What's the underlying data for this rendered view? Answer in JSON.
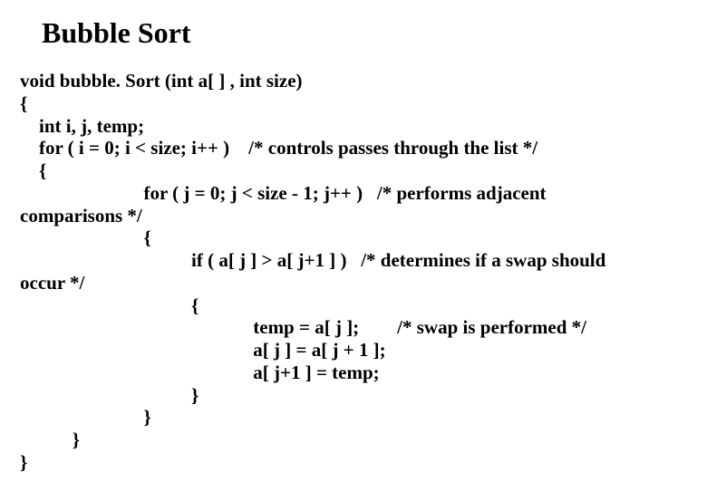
{
  "title": "Bubble Sort",
  "code_lines": [
    "void bubble. Sort (int a[ ] , int size)",
    "{",
    "    int i, j, temp;",
    "    for ( i = 0; i < size; i++ )    /* controls passes through the list */",
    "    {",
    "                          for ( j = 0; j < size - 1; j++ )   /* performs adjacent",
    "comparisons */",
    "                          {",
    "                                    if ( a[ j ] > a[ j+1 ] )   /* determines if a swap should",
    "occur */",
    "                                    {",
    "                                                 temp = a[ j ];        /* swap is performed */",
    "                                                 a[ j ] = a[ j + 1 ];",
    "                                                 a[ j+1 ] = temp;",
    "                                    }",
    "                          }",
    "           }",
    "}"
  ],
  "style": {
    "background_color": "#ffffff",
    "text_color": "#000000",
    "title_fontsize": 32,
    "title_fontweight": "bold",
    "code_fontsize": 21,
    "code_fontweight": "bold",
    "font_family": "Times New Roman"
  }
}
